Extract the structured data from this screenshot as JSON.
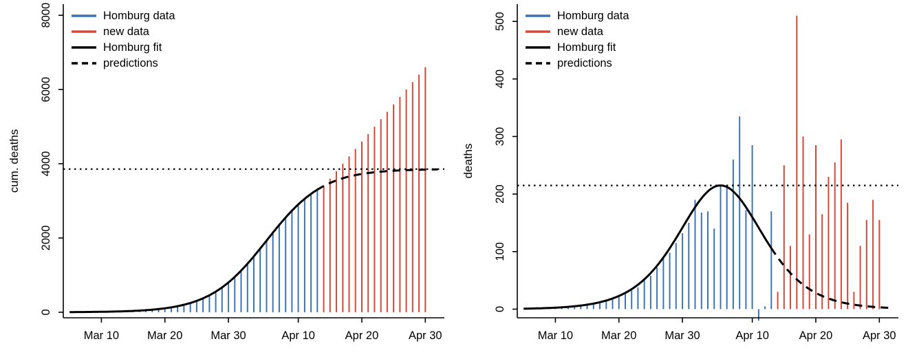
{
  "figure": {
    "background": "#ffffff"
  },
  "colors": {
    "homburg_blue": "#3c74b3",
    "new_red": "#d5493a",
    "fit_black": "#000000",
    "axis": "#000000"
  },
  "chart_data": [
    {
      "type": "bar",
      "name": "cumulative-deaths",
      "title": "",
      "xlabel": "",
      "ylabel": "cum. deaths",
      "ylim": [
        0,
        8000
      ],
      "yticks": [
        0,
        2000,
        4000,
        6000,
        8000
      ],
      "y_inner": [
        -150,
        8300
      ],
      "x_domain": [
        2,
        62
      ],
      "xticks": [
        {
          "day": 8,
          "label": "Mar 10"
        },
        {
          "day": 18,
          "label": "Mar 20"
        },
        {
          "day": 28,
          "label": "Mar 30"
        },
        {
          "day": 39,
          "label": "Apr 10"
        },
        {
          "day": 49,
          "label": "Apr 20"
        },
        {
          "day": 59,
          "label": "Apr 30"
        }
      ],
      "dotted_hline": 3856,
      "legend": [
        {
          "label": "Homburg data",
          "color_key": "homburg_blue",
          "dash": false
        },
        {
          "label": "new data",
          "color_key": "new_red",
          "dash": false
        },
        {
          "label": "Homburg fit",
          "color_key": "fit_black",
          "dash": false
        },
        {
          "label": "predictions",
          "color_key": "fit_black",
          "dash": true
        }
      ],
      "bar_series": [
        {
          "name": "Homburg data",
          "color_key": "homburg_blue",
          "days": [
            6,
            7,
            8,
            9,
            10,
            11,
            12,
            13,
            14,
            15,
            16,
            17,
            18,
            19,
            20,
            21,
            22,
            23,
            24,
            25,
            26,
            27,
            28,
            29,
            30,
            31,
            32,
            33,
            34,
            35,
            36,
            37,
            38,
            39,
            40,
            41,
            42
          ],
          "values": [
            8,
            10,
            12,
            15,
            18,
            22,
            30,
            36,
            45,
            55,
            70,
            85,
            105,
            130,
            165,
            200,
            250,
            305,
            375,
            460,
            555,
            670,
            800,
            950,
            1120,
            1300,
            1500,
            1710,
            1930,
            2140,
            2350,
            2550,
            2730,
            2900,
            3050,
            3180,
            3300
          ]
        },
        {
          "name": "new data",
          "color_key": "new_red",
          "days": [
            43,
            44,
            45,
            46,
            47,
            48,
            49,
            50,
            51,
            52,
            53,
            54,
            55,
            56,
            57,
            58,
            59
          ],
          "values": [
            3400,
            3600,
            3800,
            4000,
            4200,
            4400,
            4600,
            4800,
            5000,
            5200,
            5400,
            5600,
            5800,
            6000,
            6200,
            6400,
            6600
          ]
        }
      ],
      "fit": {
        "model": "logistic_cumulative",
        "K": 3856,
        "r": 0.223,
        "t0_day": 34,
        "solid_days": [
          3,
          42
        ],
        "dashed_days": [
          42,
          61
        ]
      }
    },
    {
      "type": "bar",
      "name": "daily-deaths",
      "title": "",
      "xlabel": "",
      "ylabel": "deaths",
      "ylim": [
        0,
        500
      ],
      "yticks": [
        0,
        100,
        200,
        300,
        400,
        500
      ],
      "y_inner": [
        -15,
        530
      ],
      "x_domain": [
        2,
        62
      ],
      "xticks": [
        {
          "day": 8,
          "label": "Mar 10"
        },
        {
          "day": 18,
          "label": "Mar 20"
        },
        {
          "day": 28,
          "label": "Mar 30"
        },
        {
          "day": 39,
          "label": "Apr 10"
        },
        {
          "day": 49,
          "label": "Apr 20"
        },
        {
          "day": 59,
          "label": "Apr 30"
        }
      ],
      "dotted_hline": 215,
      "legend": [
        {
          "label": "Homburg data",
          "color_key": "homburg_blue",
          "dash": false
        },
        {
          "label": "new data",
          "color_key": "new_red",
          "dash": false
        },
        {
          "label": "Homburg fit",
          "color_key": "fit_black",
          "dash": false
        },
        {
          "label": "predictions",
          "color_key": "fit_black",
          "dash": true
        }
      ],
      "bar_series": [
        {
          "name": "Homburg data",
          "color_key": "homburg_blue",
          "days": [
            6,
            7,
            8,
            9,
            10,
            11,
            12,
            13,
            14,
            15,
            16,
            17,
            18,
            19,
            20,
            21,
            22,
            23,
            24,
            25,
            26,
            27,
            28,
            29,
            30,
            31,
            32,
            33,
            34,
            35,
            36,
            37,
            38,
            39,
            40,
            41,
            42
          ],
          "values": [
            2,
            3,
            3,
            4,
            5,
            6,
            8,
            8,
            10,
            12,
            16,
            18,
            22,
            28,
            35,
            38,
            50,
            58,
            72,
            88,
            98,
            115,
            132,
            150,
            190,
            168,
            170,
            140,
            215,
            212,
            260,
            335,
            172,
            285,
            -20,
            5,
            170
          ]
        },
        {
          "name": "new data",
          "color_key": "new_red",
          "days": [
            43,
            44,
            45,
            46,
            47,
            48,
            49,
            50,
            51,
            52,
            53,
            54,
            55,
            56,
            57,
            58,
            59
          ],
          "values": [
            30,
            250,
            110,
            510,
            300,
            130,
            285,
            165,
            230,
            255,
            295,
            185,
            30,
            110,
            155,
            190,
            155
          ]
        }
      ],
      "fit": {
        "model": "logistic_daily",
        "K": 3856,
        "r": 0.223,
        "t0_day": 34,
        "solid_days": [
          3,
          42
        ],
        "dashed_days": [
          42,
          61
        ]
      }
    }
  ]
}
